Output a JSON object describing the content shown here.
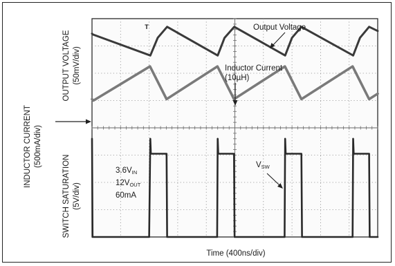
{
  "chart_data": {
    "type": "line",
    "title": "",
    "xlabel": "Time (400ns/div)",
    "ylabel_left_outer": [
      "INDUCTOR CURRENT",
      "(500mA/div)"
    ],
    "ylabel_upper": [
      "OUTPUT VOLTAGE",
      "(50mV/div)"
    ],
    "ylabel_lower": [
      "SWITCH SATURATION",
      "(5V/div)"
    ],
    "grid": true,
    "divisions": {
      "x": 10,
      "y": 8
    },
    "xlim": [
      0,
      10
    ],
    "ylim": [
      0,
      8
    ],
    "conditions": [
      {
        "value": "3.6V",
        "sub": "IN"
      },
      {
        "value": "12V",
        "sub": "OUT"
      },
      {
        "value": "60mA",
        "sub": ""
      }
    ],
    "trigger_marker": "T",
    "series": [
      {
        "name": "Output Voltage",
        "label_lines": [
          "Output Voltage"
        ],
        "color": "#3a3a3a",
        "points": [
          [
            0,
            7.45
          ],
          [
            0.03,
            7.42
          ],
          [
            2.04,
            6.65
          ],
          [
            2.3,
            7.3
          ],
          [
            2.63,
            7.7
          ],
          [
            4.4,
            6.65
          ],
          [
            4.64,
            7.3
          ],
          [
            4.98,
            7.7
          ],
          [
            6.76,
            6.65
          ],
          [
            7.0,
            7.3
          ],
          [
            7.33,
            7.7
          ],
          [
            9.14,
            6.65
          ],
          [
            9.38,
            7.3
          ],
          [
            9.7,
            7.7
          ],
          [
            10,
            7.55
          ]
        ]
      },
      {
        "name": "Inductor Current",
        "label_lines": [
          "Inductor Current",
          "(10µH)"
        ],
        "color": "#7a7a7a",
        "points": [
          [
            0,
            5.05
          ],
          [
            0.05,
            5.0
          ],
          [
            2.03,
            6.25
          ],
          [
            2.61,
            5.05
          ],
          [
            4.39,
            6.25
          ],
          [
            4.97,
            5.05
          ],
          [
            6.75,
            6.25
          ],
          [
            7.33,
            5.05
          ],
          [
            9.12,
            6.25
          ],
          [
            9.7,
            5.05
          ],
          [
            10,
            5.25
          ]
        ]
      },
      {
        "name": "V",
        "sub": "SW",
        "color": "#2a2a2a",
        "points": [
          [
            0,
            3.6
          ],
          [
            0.02,
            0.0
          ],
          [
            0.25,
            0.0
          ],
          [
            2.0,
            0.0
          ],
          [
            2.04,
            3.6
          ],
          [
            2.06,
            3.05
          ],
          [
            2.61,
            3.05
          ],
          [
            2.63,
            0.0
          ],
          [
            4.38,
            0.0
          ],
          [
            4.4,
            3.6
          ],
          [
            4.42,
            3.05
          ],
          [
            4.97,
            3.05
          ],
          [
            4.99,
            0.0
          ],
          [
            6.74,
            0.0
          ],
          [
            6.76,
            3.6
          ],
          [
            6.78,
            3.05
          ],
          [
            7.33,
            3.05
          ],
          [
            7.35,
            0.0
          ],
          [
            9.12,
            0.0
          ],
          [
            9.14,
            3.6
          ],
          [
            9.16,
            3.05
          ],
          [
            9.7,
            3.05
          ],
          [
            9.72,
            0.0
          ],
          [
            10,
            0.0
          ]
        ]
      }
    ],
    "annotations": [
      {
        "text": "Output Voltage",
        "target": "Output Voltage"
      },
      {
        "text": "Inductor Current (10µH)",
        "target": "Inductor Current"
      },
      {
        "text": "VSW",
        "target": "V"
      }
    ]
  }
}
